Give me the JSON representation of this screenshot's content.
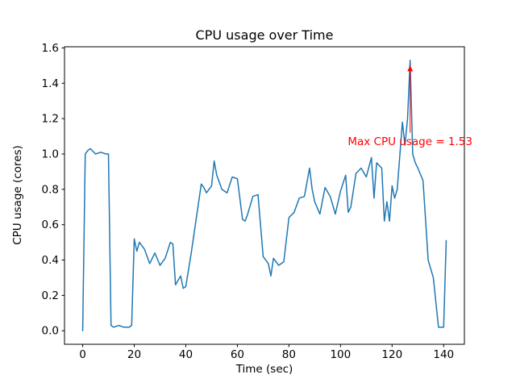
{
  "chart_data": {
    "type": "line",
    "title": "CPU usage over Time",
    "xlabel": "Time (sec)",
    "ylabel": "CPU usage (cores)",
    "xlim": [
      -7.05,
      148.05
    ],
    "ylim": [
      -0.0765,
      1.6065
    ],
    "grid": false,
    "legend": "none",
    "line_color": "#1f77b4",
    "line_width": 1.5,
    "background_color": "#ffffff",
    "axes_edge_color": "#000000",
    "xticks": {
      "values": [
        0,
        20,
        40,
        60,
        80,
        100,
        120,
        140
      ],
      "labels": [
        "0",
        "20",
        "40",
        "60",
        "80",
        "100",
        "120",
        "140"
      ]
    },
    "yticks": {
      "values": [
        0.0,
        0.2,
        0.4,
        0.6,
        0.8,
        1.0,
        1.2,
        1.4,
        1.6
      ],
      "labels": [
        "0.0",
        "0.2",
        "0.4",
        "0.6",
        "0.8",
        "1.0",
        "1.2",
        "1.4",
        "1.6"
      ]
    },
    "points": [
      [
        0,
        0.0
      ],
      [
        1,
        1.0
      ],
      [
        2,
        1.02
      ],
      [
        3,
        1.03
      ],
      [
        5,
        1.0
      ],
      [
        7,
        1.01
      ],
      [
        9,
        1.0
      ],
      [
        10,
        1.0
      ],
      [
        11,
        0.03
      ],
      [
        12,
        0.02
      ],
      [
        14,
        0.03
      ],
      [
        16,
        0.02
      ],
      [
        18,
        0.02
      ],
      [
        19,
        0.03
      ],
      [
        20,
        0.52
      ],
      [
        21,
        0.45
      ],
      [
        22,
        0.5
      ],
      [
        24,
        0.46
      ],
      [
        26,
        0.38
      ],
      [
        28,
        0.44
      ],
      [
        30,
        0.37
      ],
      [
        32,
        0.41
      ],
      [
        34,
        0.5
      ],
      [
        35,
        0.49
      ],
      [
        36,
        0.26
      ],
      [
        38,
        0.31
      ],
      [
        39,
        0.24
      ],
      [
        40,
        0.25
      ],
      [
        42,
        0.43
      ],
      [
        44,
        0.63
      ],
      [
        46,
        0.83
      ],
      [
        47,
        0.81
      ],
      [
        48,
        0.78
      ],
      [
        50,
        0.82
      ],
      [
        51,
        0.96
      ],
      [
        52,
        0.88
      ],
      [
        54,
        0.8
      ],
      [
        56,
        0.78
      ],
      [
        58,
        0.87
      ],
      [
        60,
        0.86
      ],
      [
        62,
        0.63
      ],
      [
        63,
        0.62
      ],
      [
        64,
        0.66
      ],
      [
        66,
        0.76
      ],
      [
        68,
        0.77
      ],
      [
        70,
        0.42
      ],
      [
        72,
        0.38
      ],
      [
        73,
        0.31
      ],
      [
        74,
        0.41
      ],
      [
        76,
        0.37
      ],
      [
        78,
        0.39
      ],
      [
        80,
        0.64
      ],
      [
        82,
        0.67
      ],
      [
        84,
        0.75
      ],
      [
        86,
        0.76
      ],
      [
        88,
        0.92
      ],
      [
        89,
        0.8
      ],
      [
        90,
        0.73
      ],
      [
        92,
        0.66
      ],
      [
        94,
        0.81
      ],
      [
        96,
        0.76
      ],
      [
        98,
        0.66
      ],
      [
        100,
        0.79
      ],
      [
        102,
        0.88
      ],
      [
        103,
        0.67
      ],
      [
        104,
        0.7
      ],
      [
        106,
        0.89
      ],
      [
        108,
        0.92
      ],
      [
        110,
        0.87
      ],
      [
        112,
        0.98
      ],
      [
        113,
        0.75
      ],
      [
        114,
        0.95
      ],
      [
        116,
        0.92
      ],
      [
        117,
        0.62
      ],
      [
        118,
        0.73
      ],
      [
        119,
        0.62
      ],
      [
        120,
        0.82
      ],
      [
        121,
        0.75
      ],
      [
        122,
        0.8
      ],
      [
        124,
        1.18
      ],
      [
        125,
        1.05
      ],
      [
        126,
        1.2
      ],
      [
        127,
        1.53
      ],
      [
        128,
        1.0
      ],
      [
        129,
        0.95
      ],
      [
        130,
        0.92
      ],
      [
        132,
        0.85
      ],
      [
        134,
        0.4
      ],
      [
        136,
        0.3
      ],
      [
        138,
        0.02
      ],
      [
        140,
        0.02
      ],
      [
        141,
        0.51
      ]
    ],
    "annotation": {
      "text": "Max CPU usage = 1.53",
      "color": "#ff0000",
      "point_x": 127,
      "point_y": 1.53,
      "text_x": 127,
      "text_y": 1.05,
      "arrow_base_y": 1.12,
      "arrow_tip_y": 1.5
    }
  }
}
